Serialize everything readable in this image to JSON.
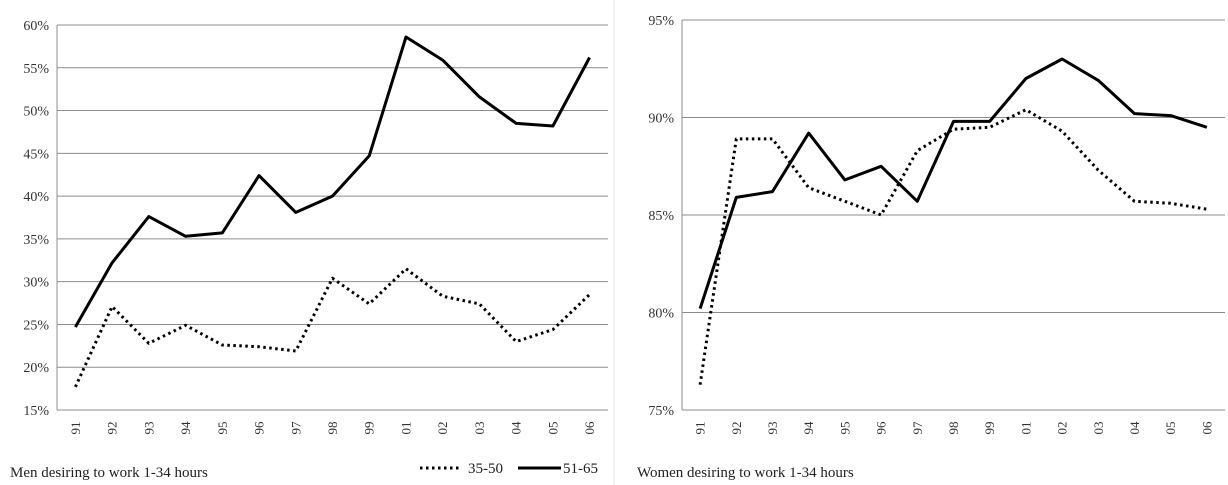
{
  "chart_data": [
    {
      "type": "line",
      "title": "",
      "caption": "Men desiring to work 1-34 hours",
      "xlabel": "",
      "ylabel": "",
      "ylim": [
        15,
        60
      ],
      "ytick_step": 5,
      "grid": true,
      "categories": [
        "91",
        "92",
        "93",
        "94",
        "95",
        "96",
        "97",
        "98",
        "99",
        "01",
        "02",
        "03",
        "04",
        "05",
        "06"
      ],
      "series": [
        {
          "name": "35-50",
          "style": "dotted",
          "color": "#000000",
          "values": [
            17.7,
            27.1,
            22.8,
            24.9,
            22.6,
            22.4,
            21.9,
            30.4,
            27.4,
            31.5,
            28.3,
            27.4,
            23.0,
            24.4,
            28.5
          ]
        },
        {
          "name": "51-65",
          "style": "solid",
          "color": "#000000",
          "values": [
            24.7,
            32.2,
            37.6,
            35.3,
            35.7,
            42.4,
            38.1,
            40.0,
            44.7,
            58.6,
            55.9,
            51.6,
            48.5,
            48.2,
            56.2
          ]
        }
      ],
      "legend": {
        "position": "bottom-right",
        "entries": [
          "35-50",
          "51-65"
        ]
      }
    },
    {
      "type": "line",
      "title": "",
      "caption": "Women desiring to work 1-34 hours",
      "xlabel": "",
      "ylabel": "",
      "ylim": [
        75,
        95
      ],
      "ytick_step": 5,
      "grid": true,
      "categories": [
        "91",
        "92",
        "93",
        "94",
        "95",
        "96",
        "97",
        "98",
        "99",
        "01",
        "02",
        "03",
        "04",
        "05",
        "06"
      ],
      "series": [
        {
          "name": "35-50",
          "style": "dotted",
          "color": "#000000",
          "values": [
            76.3,
            88.9,
            88.9,
            86.4,
            85.7,
            85.0,
            88.3,
            89.4,
            89.5,
            90.4,
            89.3,
            87.3,
            85.7,
            85.6,
            85.3
          ]
        },
        {
          "name": "51-65",
          "style": "solid",
          "color": "#000000",
          "values": [
            80.2,
            85.9,
            86.2,
            89.2,
            86.8,
            87.5,
            85.7,
            89.8,
            89.8,
            92.0,
            93.0,
            91.9,
            90.2,
            90.1,
            89.5
          ]
        }
      ]
    }
  ]
}
